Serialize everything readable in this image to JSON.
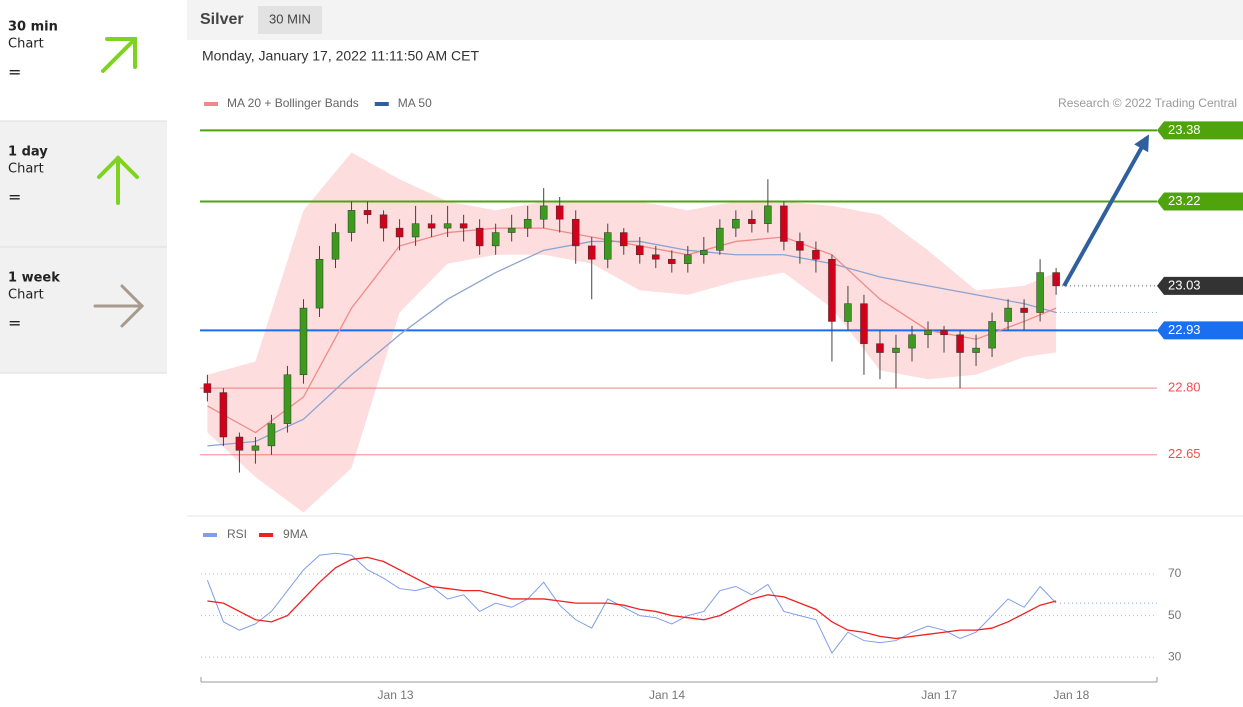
{
  "sidebar": {
    "items": [
      {
        "period": "30 min",
        "label": "Chart",
        "signal": "="
      },
      {
        "period": "1 day",
        "label": "Chart",
        "signal": "="
      },
      {
        "period": "1 week",
        "label": "Chart",
        "signal": "="
      }
    ]
  },
  "header": {
    "instrument": "Silver",
    "interval": "30 MIN"
  },
  "chart_data": [
    {
      "type": "candlestick",
      "subtitle": "Monday, January 17, 2022 11:11:50 AM CET",
      "credit": "Research © 2022 Trading Central",
      "xlim": [
        -0.4,
        59.3
      ],
      "ylim": [
        22.51,
        23.41
      ],
      "up_color": "#3d9a1e",
      "down_color": "#d0021b",
      "open": [
        22.81,
        22.79,
        22.69,
        22.66,
        22.67,
        22.72,
        22.83,
        22.98,
        23.09,
        23.15,
        23.2,
        23.19,
        23.16,
        23.14,
        23.17,
        23.16,
        23.17,
        23.16,
        23.12,
        23.15,
        23.16,
        23.18,
        23.21,
        23.18,
        23.12,
        23.09,
        23.15,
        23.12,
        23.1,
        23.09,
        23.08,
        23.1,
        23.11,
        23.16,
        23.18,
        23.17,
        23.21,
        23.13,
        23.11,
        23.09,
        22.95,
        22.99,
        22.9,
        22.88,
        22.89,
        22.92,
        22.93,
        22.92,
        22.88,
        22.89,
        22.95,
        22.98,
        22.97,
        23.06
      ],
      "high": [
        22.83,
        22.8,
        22.7,
        22.69,
        22.74,
        22.85,
        23.0,
        23.12,
        23.17,
        23.22,
        23.22,
        23.2,
        23.18,
        23.21,
        23.19,
        23.21,
        23.19,
        23.18,
        23.17,
        23.19,
        23.21,
        23.25,
        23.23,
        23.2,
        23.14,
        23.17,
        23.16,
        23.14,
        23.12,
        23.11,
        23.12,
        23.14,
        23.18,
        23.2,
        23.2,
        23.27,
        23.22,
        23.15,
        23.13,
        23.1,
        23.03,
        23.01,
        22.93,
        22.92,
        22.94,
        22.95,
        22.94,
        22.93,
        22.92,
        22.97,
        23.0,
        23.0,
        23.09,
        23.07
      ],
      "low": [
        22.77,
        22.67,
        22.61,
        22.63,
        22.65,
        22.7,
        22.81,
        22.96,
        23.07,
        23.13,
        23.17,
        23.13,
        23.11,
        23.12,
        23.14,
        23.14,
        23.13,
        23.1,
        23.1,
        23.13,
        23.14,
        23.16,
        23.15,
        23.08,
        23.0,
        23.07,
        23.1,
        23.08,
        23.07,
        23.06,
        23.06,
        23.08,
        23.1,
        23.14,
        23.15,
        23.15,
        23.11,
        23.08,
        23.06,
        22.86,
        22.93,
        22.83,
        22.82,
        22.8,
        22.86,
        22.89,
        22.88,
        22.8,
        22.85,
        22.87,
        22.93,
        22.93,
        22.95,
        23.01
      ],
      "close": [
        22.79,
        22.69,
        22.66,
        22.67,
        22.72,
        22.83,
        22.98,
        23.09,
        23.15,
        23.2,
        23.19,
        23.16,
        23.14,
        23.17,
        23.16,
        23.17,
        23.16,
        23.12,
        23.15,
        23.16,
        23.18,
        23.21,
        23.18,
        23.12,
        23.09,
        23.15,
        23.12,
        23.1,
        23.09,
        23.08,
        23.1,
        23.11,
        23.16,
        23.18,
        23.17,
        23.21,
        23.13,
        23.11,
        23.09,
        22.95,
        22.99,
        22.9,
        22.88,
        22.89,
        22.92,
        22.93,
        22.92,
        22.88,
        22.89,
        22.95,
        22.98,
        22.97,
        23.06,
        23.03
      ],
      "overlays": [
        {
          "name": "MA 20 + Bollinger Bands",
          "color": "#f08a8a",
          "band_color": "#fdd5d5",
          "x": [
            0,
            3,
            6,
            9,
            12,
            15,
            18,
            21,
            24,
            27,
            30,
            33,
            36,
            39,
            42,
            45,
            48,
            51,
            53
          ],
          "values": [
            22.76,
            22.7,
            22.78,
            22.98,
            23.12,
            23.15,
            23.16,
            23.16,
            23.14,
            23.12,
            23.1,
            23.13,
            23.14,
            23.1,
            23.0,
            22.93,
            22.91,
            22.95,
            22.98
          ],
          "upper": [
            22.83,
            22.86,
            23.2,
            23.33,
            23.27,
            23.22,
            23.2,
            23.22,
            23.22,
            23.22,
            23.2,
            23.22,
            23.22,
            23.21,
            23.19,
            23.11,
            23.02,
            23.03,
            23.06
          ],
          "lower": [
            22.7,
            22.6,
            22.52,
            22.62,
            22.97,
            23.08,
            23.1,
            23.1,
            23.08,
            23.02,
            23.01,
            23.04,
            23.06,
            22.98,
            22.84,
            22.82,
            22.83,
            22.87,
            22.88
          ]
        },
        {
          "name": "MA 50",
          "color": "#2f5f9e",
          "line_color": "#8da3cf",
          "x": [
            0,
            3,
            6,
            9,
            12,
            15,
            18,
            21,
            24,
            27,
            30,
            33,
            36,
            39,
            42,
            45,
            48,
            51,
            53
          ],
          "values": [
            22.67,
            22.68,
            22.73,
            22.83,
            22.92,
            23.0,
            23.06,
            23.11,
            23.13,
            23.13,
            23.11,
            23.1,
            23.1,
            23.08,
            23.05,
            23.03,
            23.01,
            22.99,
            22.97
          ]
        }
      ],
      "levels": [
        {
          "value": 23.38,
          "color": "#4fa30c",
          "style": "boxed"
        },
        {
          "value": 23.22,
          "color": "#4fa30c",
          "style": "boxed"
        },
        {
          "value": 23.03,
          "color": "#333333",
          "style": "current"
        },
        {
          "value": 22.93,
          "color": "#1a6ef0",
          "style": "boxed"
        },
        {
          "value": 22.8,
          "label": "22.80",
          "color": "#f0504f",
          "style": "text"
        },
        {
          "value": 22.65,
          "color": "#f0504f",
          "style": "text"
        }
      ]
    },
    {
      "type": "line",
      "xlim": [
        -0.4,
        59.3
      ],
      "ylim": [
        20,
        95
      ],
      "yticks": [
        70,
        50,
        30
      ],
      "xticks": [
        {
          "value": 11.75,
          "label": "Jan 13"
        },
        {
          "value": 28.7,
          "label": "Jan 14"
        },
        {
          "value": 45.7,
          "label": "Jan 17"
        },
        {
          "value": 53.95,
          "label": "Jan 18"
        }
      ],
      "series": [
        {
          "name": "RSI",
          "color": "#7f9ee8",
          "values": [
            67,
            47,
            43,
            46,
            52,
            62,
            72,
            79,
            80,
            79,
            72,
            68,
            63,
            62,
            64,
            58,
            60,
            52,
            56,
            54,
            58,
            66,
            55,
            48,
            44,
            58,
            54,
            50,
            49,
            46,
            50,
            52,
            62,
            64,
            60,
            65,
            52,
            50,
            48,
            32,
            42,
            38,
            37,
            38,
            42,
            45,
            43,
            39,
            42,
            50,
            58,
            54,
            64,
            56
          ]
        },
        {
          "name": "9MA",
          "color": "#f02020",
          "values": [
            57,
            56,
            52,
            48,
            47,
            50,
            58,
            66,
            73,
            77,
            78,
            76,
            72,
            68,
            64,
            63,
            62,
            62,
            60,
            58,
            58,
            58,
            57,
            56,
            56,
            56,
            55,
            53,
            52,
            50,
            49,
            48,
            50,
            54,
            58,
            60,
            59,
            56,
            53,
            47,
            43,
            42,
            40,
            39,
            40,
            41,
            42,
            43,
            43,
            44,
            47,
            51,
            55,
            57
          ]
        }
      ]
    }
  ]
}
